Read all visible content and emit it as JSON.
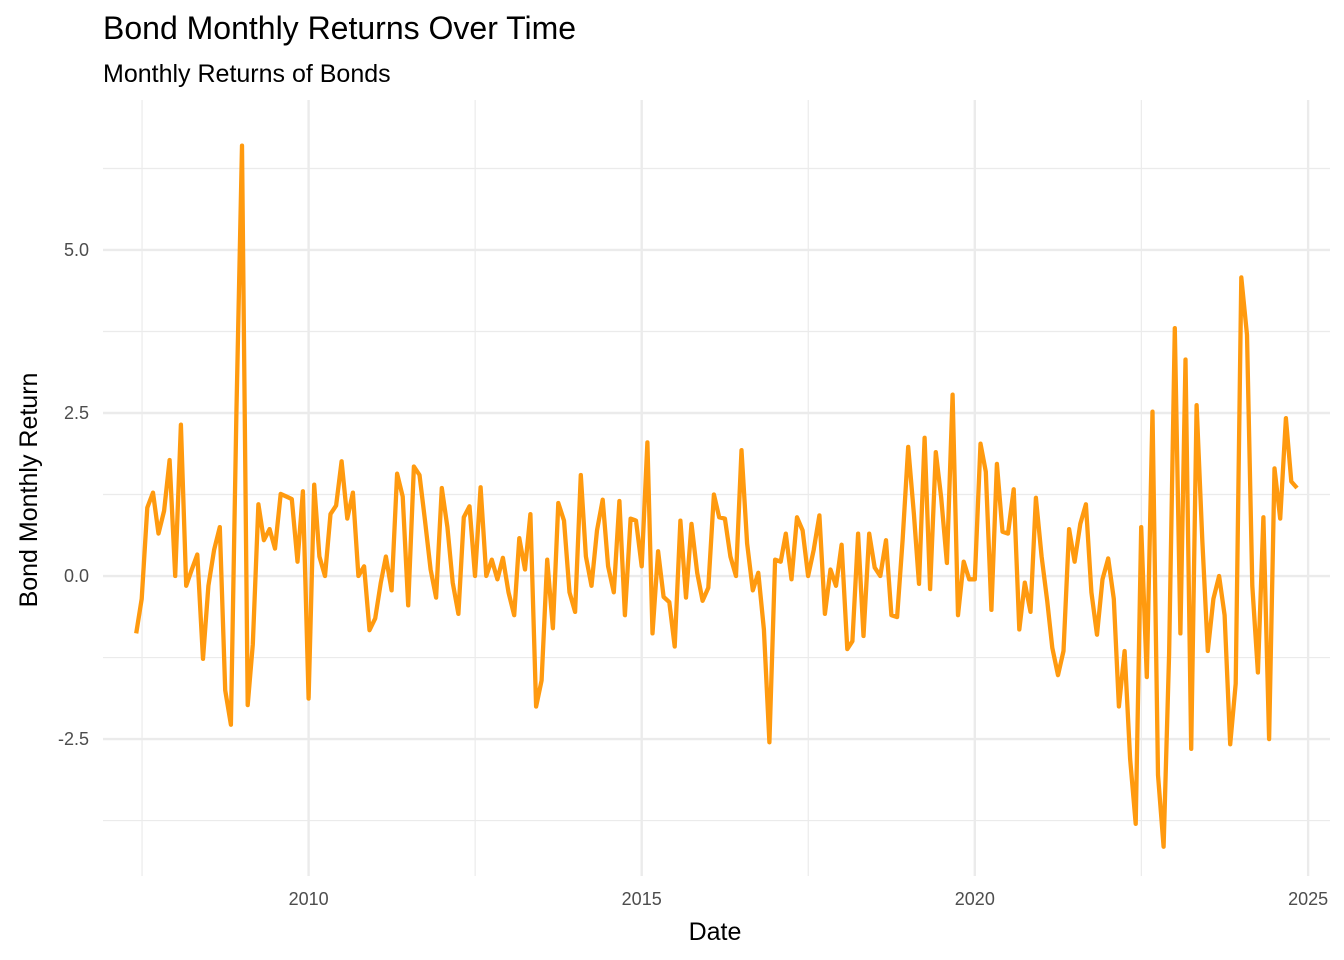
{
  "chart_data": {
    "type": "line",
    "title": "Bond Monthly Returns Over Time",
    "subtitle": "Monthly Returns of Bonds",
    "xlabel": "Date",
    "ylabel": "Bond Monthly Return",
    "x_ticks": [
      {
        "value": "2010-01-01",
        "label": "2010"
      },
      {
        "value": "2015-01-01",
        "label": "2015"
      },
      {
        "value": "2020-01-01",
        "label": "2020"
      },
      {
        "value": "2025-01-01",
        "label": "2025"
      }
    ],
    "y_ticks": [
      {
        "value": -2.5,
        "label": "-2.5"
      },
      {
        "value": 0,
        "label": "0.0"
      },
      {
        "value": 2.5,
        "label": "2.5"
      },
      {
        "value": 5,
        "label": "5.0"
      }
    ],
    "xlim": [
      "2006-12-01",
      "2025-05-01"
    ],
    "ylim": [
      -4.6,
      7.3
    ],
    "grid": true,
    "line_color": "#ff9a0f",
    "series": [
      {
        "points": [
          [
            "2007-06-01",
            -0.88
          ],
          [
            "2007-07-01",
            -0.35
          ],
          [
            "2007-08-01",
            1.05
          ],
          [
            "2007-09-01",
            1.28
          ],
          [
            "2007-10-01",
            0.65
          ],
          [
            "2007-11-01",
            1.0
          ],
          [
            "2007-12-01",
            1.78
          ],
          [
            "2008-01-01",
            0.0
          ],
          [
            "2008-02-01",
            2.32
          ],
          [
            "2008-03-01",
            -0.15
          ],
          [
            "2008-04-01",
            0.1
          ],
          [
            "2008-05-01",
            0.33
          ],
          [
            "2008-06-01",
            -1.27
          ],
          [
            "2008-07-01",
            -0.15
          ],
          [
            "2008-08-01",
            0.4
          ],
          [
            "2008-09-01",
            0.75
          ],
          [
            "2008-10-01",
            -1.75
          ],
          [
            "2008-11-01",
            -2.28
          ],
          [
            "2008-12-01",
            2.5
          ],
          [
            "2009-01-01",
            6.6
          ],
          [
            "2009-02-01",
            -1.98
          ],
          [
            "2009-03-01",
            -1.05
          ],
          [
            "2009-04-01",
            1.1
          ],
          [
            "2009-05-01",
            0.55
          ],
          [
            "2009-06-01",
            0.72
          ],
          [
            "2009-07-01",
            0.42
          ],
          [
            "2009-08-01",
            1.26
          ],
          [
            "2009-09-01",
            1.22
          ],
          [
            "2009-10-01",
            1.18
          ],
          [
            "2009-11-01",
            0.22
          ],
          [
            "2009-12-01",
            1.3
          ],
          [
            "2010-01-01",
            -1.88
          ],
          [
            "2010-02-01",
            1.4
          ],
          [
            "2010-03-01",
            0.3
          ],
          [
            "2010-04-01",
            0.0
          ],
          [
            "2010-05-01",
            0.95
          ],
          [
            "2010-06-01",
            1.08
          ],
          [
            "2010-07-01",
            1.76
          ],
          [
            "2010-08-01",
            0.88
          ],
          [
            "2010-09-01",
            1.28
          ],
          [
            "2010-10-01",
            0.0
          ],
          [
            "2010-11-01",
            0.15
          ],
          [
            "2010-12-01",
            -0.83
          ],
          [
            "2011-01-01",
            -0.65
          ],
          [
            "2011-02-01",
            -0.1
          ],
          [
            "2011-03-01",
            0.3
          ],
          [
            "2011-04-01",
            -0.22
          ],
          [
            "2011-05-01",
            1.57
          ],
          [
            "2011-06-01",
            1.22
          ],
          [
            "2011-07-01",
            -0.45
          ],
          [
            "2011-08-01",
            1.68
          ],
          [
            "2011-09-01",
            1.55
          ],
          [
            "2011-10-01",
            0.85
          ],
          [
            "2011-11-01",
            0.1
          ],
          [
            "2011-12-01",
            -0.33
          ],
          [
            "2012-01-01",
            1.35
          ],
          [
            "2012-02-01",
            0.75
          ],
          [
            "2012-03-01",
            -0.1
          ],
          [
            "2012-04-01",
            -0.58
          ],
          [
            "2012-05-01",
            0.9
          ],
          [
            "2012-06-01",
            1.07
          ],
          [
            "2012-07-01",
            0.0
          ],
          [
            "2012-08-01",
            1.36
          ],
          [
            "2012-09-01",
            0.0
          ],
          [
            "2012-10-01",
            0.25
          ],
          [
            "2012-11-01",
            -0.05
          ],
          [
            "2012-12-01",
            0.28
          ],
          [
            "2013-01-01",
            -0.25
          ],
          [
            "2013-02-01",
            -0.6
          ],
          [
            "2013-03-01",
            0.58
          ],
          [
            "2013-04-01",
            0.1
          ],
          [
            "2013-05-01",
            0.95
          ],
          [
            "2013-06-01",
            -2.0
          ],
          [
            "2013-07-01",
            -1.6
          ],
          [
            "2013-08-01",
            0.25
          ],
          [
            "2013-09-01",
            -0.8
          ],
          [
            "2013-10-01",
            1.12
          ],
          [
            "2013-11-01",
            0.85
          ],
          [
            "2013-12-01",
            -0.25
          ],
          [
            "2014-01-01",
            -0.55
          ],
          [
            "2014-02-01",
            1.55
          ],
          [
            "2014-03-01",
            0.3
          ],
          [
            "2014-04-01",
            -0.15
          ],
          [
            "2014-05-01",
            0.7
          ],
          [
            "2014-06-01",
            1.17
          ],
          [
            "2014-07-01",
            0.15
          ],
          [
            "2014-08-01",
            -0.25
          ],
          [
            "2014-09-01",
            1.15
          ],
          [
            "2014-10-01",
            -0.6
          ],
          [
            "2014-11-01",
            0.88
          ],
          [
            "2014-12-01",
            0.85
          ],
          [
            "2015-01-01",
            0.15
          ],
          [
            "2015-02-01",
            2.05
          ],
          [
            "2015-03-01",
            -0.88
          ],
          [
            "2015-04-01",
            0.38
          ],
          [
            "2015-05-01",
            -0.32
          ],
          [
            "2015-06-01",
            -0.4
          ],
          [
            "2015-07-01",
            -1.08
          ],
          [
            "2015-08-01",
            0.85
          ],
          [
            "2015-09-01",
            -0.33
          ],
          [
            "2015-10-01",
            0.8
          ],
          [
            "2015-11-01",
            0.05
          ],
          [
            "2015-12-01",
            -0.38
          ],
          [
            "2016-01-01",
            -0.18
          ],
          [
            "2016-02-01",
            1.25
          ],
          [
            "2016-03-01",
            0.9
          ],
          [
            "2016-04-01",
            0.88
          ],
          [
            "2016-05-01",
            0.3
          ],
          [
            "2016-06-01",
            0.0
          ],
          [
            "2016-07-01",
            1.93
          ],
          [
            "2016-08-01",
            0.5
          ],
          [
            "2016-09-01",
            -0.22
          ],
          [
            "2016-10-01",
            0.05
          ],
          [
            "2016-11-01",
            -0.82
          ],
          [
            "2016-12-01",
            -2.55
          ],
          [
            "2017-01-01",
            0.25
          ],
          [
            "2017-02-01",
            0.22
          ],
          [
            "2017-03-01",
            0.65
          ],
          [
            "2017-04-01",
            -0.05
          ],
          [
            "2017-05-01",
            0.9
          ],
          [
            "2017-06-01",
            0.7
          ],
          [
            "2017-07-01",
            0.0
          ],
          [
            "2017-08-01",
            0.4
          ],
          [
            "2017-09-01",
            0.93
          ],
          [
            "2017-10-01",
            -0.58
          ],
          [
            "2017-11-01",
            0.1
          ],
          [
            "2017-12-01",
            -0.15
          ],
          [
            "2018-01-01",
            0.48
          ],
          [
            "2018-02-01",
            -1.12
          ],
          [
            "2018-03-01",
            -1.0
          ],
          [
            "2018-04-01",
            0.65
          ],
          [
            "2018-05-01",
            -0.92
          ],
          [
            "2018-06-01",
            0.65
          ],
          [
            "2018-07-01",
            0.13
          ],
          [
            "2018-08-01",
            0.0
          ],
          [
            "2018-09-01",
            0.55
          ],
          [
            "2018-10-01",
            -0.6
          ],
          [
            "2018-11-01",
            -0.63
          ],
          [
            "2018-12-01",
            0.55
          ],
          [
            "2019-01-01",
            1.98
          ],
          [
            "2019-02-01",
            0.95
          ],
          [
            "2019-03-01",
            -0.12
          ],
          [
            "2019-04-01",
            2.12
          ],
          [
            "2019-05-01",
            -0.2
          ],
          [
            "2019-06-01",
            1.9
          ],
          [
            "2019-07-01",
            1.2
          ],
          [
            "2019-08-01",
            0.2
          ],
          [
            "2019-09-01",
            2.78
          ],
          [
            "2019-10-01",
            -0.6
          ],
          [
            "2019-11-01",
            0.22
          ],
          [
            "2019-12-01",
            -0.05
          ],
          [
            "2020-01-01",
            -0.05
          ],
          [
            "2020-02-01",
            2.03
          ],
          [
            "2020-03-01",
            1.6
          ],
          [
            "2020-04-01",
            -0.52
          ],
          [
            "2020-05-01",
            1.72
          ],
          [
            "2020-06-01",
            0.68
          ],
          [
            "2020-07-01",
            0.65
          ],
          [
            "2020-08-01",
            1.33
          ],
          [
            "2020-09-01",
            -0.82
          ],
          [
            "2020-10-01",
            -0.1
          ],
          [
            "2020-11-01",
            -0.55
          ],
          [
            "2020-12-01",
            1.2
          ],
          [
            "2021-01-01",
            0.3
          ],
          [
            "2021-02-01",
            -0.38
          ],
          [
            "2021-03-01",
            -1.1
          ],
          [
            "2021-04-01",
            -1.52
          ],
          [
            "2021-05-01",
            -1.15
          ],
          [
            "2021-06-01",
            0.72
          ],
          [
            "2021-07-01",
            0.22
          ],
          [
            "2021-08-01",
            0.8
          ],
          [
            "2021-09-01",
            1.1
          ],
          [
            "2021-10-01",
            -0.25
          ],
          [
            "2021-11-01",
            -0.9
          ],
          [
            "2021-12-01",
            -0.05
          ],
          [
            "2022-01-01",
            0.27
          ],
          [
            "2022-02-01",
            -0.35
          ],
          [
            "2022-03-01",
            -2.0
          ],
          [
            "2022-04-01",
            -1.15
          ],
          [
            "2022-05-01",
            -2.8
          ],
          [
            "2022-06-01",
            -3.8
          ],
          [
            "2022-07-01",
            0.75
          ],
          [
            "2022-08-01",
            -1.55
          ],
          [
            "2022-09-01",
            2.52
          ],
          [
            "2022-10-01",
            -3.05
          ],
          [
            "2022-11-01",
            -4.15
          ],
          [
            "2022-12-01",
            -1.2
          ],
          [
            "2023-01-01",
            3.8
          ],
          [
            "2023-02-01",
            -0.88
          ],
          [
            "2023-03-01",
            3.32
          ],
          [
            "2023-04-01",
            -2.65
          ],
          [
            "2023-05-01",
            2.62
          ],
          [
            "2023-06-01",
            0.55
          ],
          [
            "2023-07-01",
            -1.15
          ],
          [
            "2023-08-01",
            -0.35
          ],
          [
            "2023-09-01",
            0.0
          ],
          [
            "2023-10-01",
            -0.6
          ],
          [
            "2023-11-01",
            -2.58
          ],
          [
            "2023-12-01",
            -1.65
          ],
          [
            "2024-01-01",
            4.58
          ],
          [
            "2024-02-01",
            3.7
          ],
          [
            "2024-03-01",
            -0.15
          ],
          [
            "2024-04-01",
            -1.48
          ],
          [
            "2024-05-01",
            0.9
          ],
          [
            "2024-06-01",
            -2.5
          ],
          [
            "2024-07-01",
            1.65
          ],
          [
            "2024-08-01",
            0.88
          ],
          [
            "2024-09-01",
            2.42
          ],
          [
            "2024-10-01",
            1.45
          ],
          [
            "2024-11-01",
            1.35
          ]
        ]
      }
    ]
  }
}
